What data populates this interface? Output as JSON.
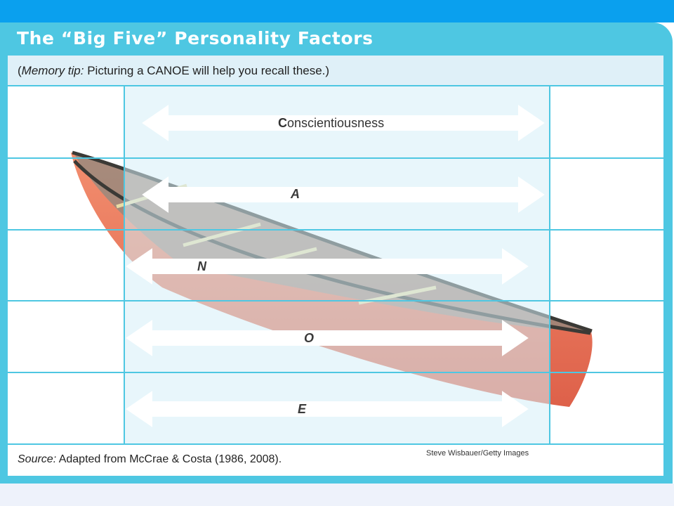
{
  "slide": {
    "title": "The “Big Five” Personality Factors",
    "memory_tip": {
      "label": "Memory tip:",
      "text": "Picturing a CANOE will help you recall these.)",
      "open_paren": "("
    },
    "factors": [
      {
        "initial": "C",
        "rest": "onscientiousness"
      },
      {
        "initial": "A",
        "rest": ""
      },
      {
        "initial": "N",
        "rest": ""
      },
      {
        "initial": "O",
        "rest": ""
      },
      {
        "initial": "E",
        "rest": ""
      }
    ],
    "source": {
      "label": "Source:",
      "text": "Adapted from McCrae & Costa (1986, 2008)."
    },
    "photo_credit": "Steve Wisbauer/Getty Images"
  },
  "colors": {
    "top_bar": "#0aa0ee",
    "panel": "#4ec7e2",
    "canoe_hull": "#e25a32",
    "arrow": "#ffffff"
  }
}
